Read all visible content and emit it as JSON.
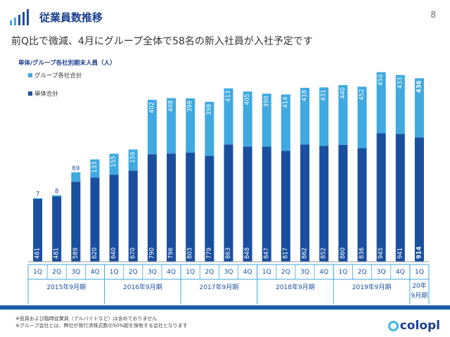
{
  "header": {
    "title": "従業員数推移",
    "page_number": "8",
    "subtitle": "前Q比で微減、4月にグループ全体で58名の新入社員が入社予定です"
  },
  "chart_data": {
    "type": "bar",
    "title": "単体/グループ各社別期末人員（人）",
    "stacked": true,
    "categories": [
      "1Q",
      "2Q",
      "3Q",
      "4Q",
      "1Q",
      "2Q",
      "3Q",
      "4Q",
      "1Q",
      "2Q",
      "3Q",
      "4Q",
      "1Q",
      "2Q",
      "3Q",
      "4Q",
      "1Q",
      "2Q",
      "3Q",
      "4Q",
      "1Q"
    ],
    "period_groups": [
      {
        "label": "2015年9月期",
        "count": 4
      },
      {
        "label": "2016年9月期",
        "count": 4
      },
      {
        "label": "2017年9月期",
        "count": 4
      },
      {
        "label": "2018年9月期",
        "count": 4
      },
      {
        "label": "2019年9月期",
        "count": 4
      },
      {
        "label": "20年\n9月期",
        "count": 1
      }
    ],
    "series": [
      {
        "name": "単体合計",
        "color": "#1a4fa0",
        "values": [
          461,
          481,
          589,
          620,
          640,
          670,
          790,
          796,
          803,
          779,
          863,
          848,
          847,
          817,
          862,
          852,
          860,
          836,
          945,
          941,
          914
        ]
      },
      {
        "name": "グループ各社合計",
        "color": "#3fa9e0",
        "values": [
          7,
          8,
          69,
          133,
          155,
          156,
          402,
          408,
          399,
          398,
          413,
          405,
          390,
          414,
          418,
          431,
          440,
          452,
          450,
          433,
          436
        ]
      }
    ],
    "legend_position": "top-left",
    "ylim": [
      0,
      1450
    ],
    "grid": false
  },
  "footer": {
    "note1": "※役員および臨時従業員（アルバイトなど）は含めておりません",
    "note2": "※グループ会社とは、弊社が発行済株式数の50%超を保有する会社となります",
    "brand": "colopl"
  }
}
